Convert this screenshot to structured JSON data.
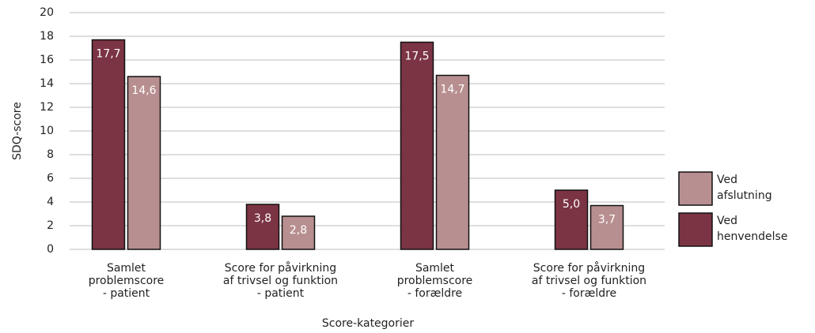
{
  "chart_data": {
    "type": "bar",
    "categories": [
      "Samlet\nproblemscore\n- patient",
      "Score for påvirkning\naf trivsel og funktion\n- patient",
      "Samlet\nproblemscore\n- forældre",
      "Score for påvirkning\naf trivsel og funktion\n- forældre"
    ],
    "series": [
      {
        "name": "Ved henvendelse",
        "color": "#7b3443",
        "values": [
          17.7,
          3.8,
          17.5,
          5.0
        ],
        "value_labels": [
          "17,7",
          "3,8",
          "17,5",
          "5,0"
        ]
      },
      {
        "name": "Ved afslutning",
        "color": "#b88f90",
        "values": [
          14.6,
          2.8,
          14.7,
          3.7
        ],
        "value_labels": [
          "14,6",
          "2,8",
          "14,7",
          "3,7"
        ]
      }
    ],
    "xlabel": "Score-kategorier",
    "ylabel": "SDQ-score",
    "ylim": [
      0,
      20
    ],
    "yticks": [
      0,
      2,
      4,
      6,
      8,
      10,
      12,
      14,
      16,
      18,
      20
    ],
    "grid": true,
    "legend": "right"
  }
}
